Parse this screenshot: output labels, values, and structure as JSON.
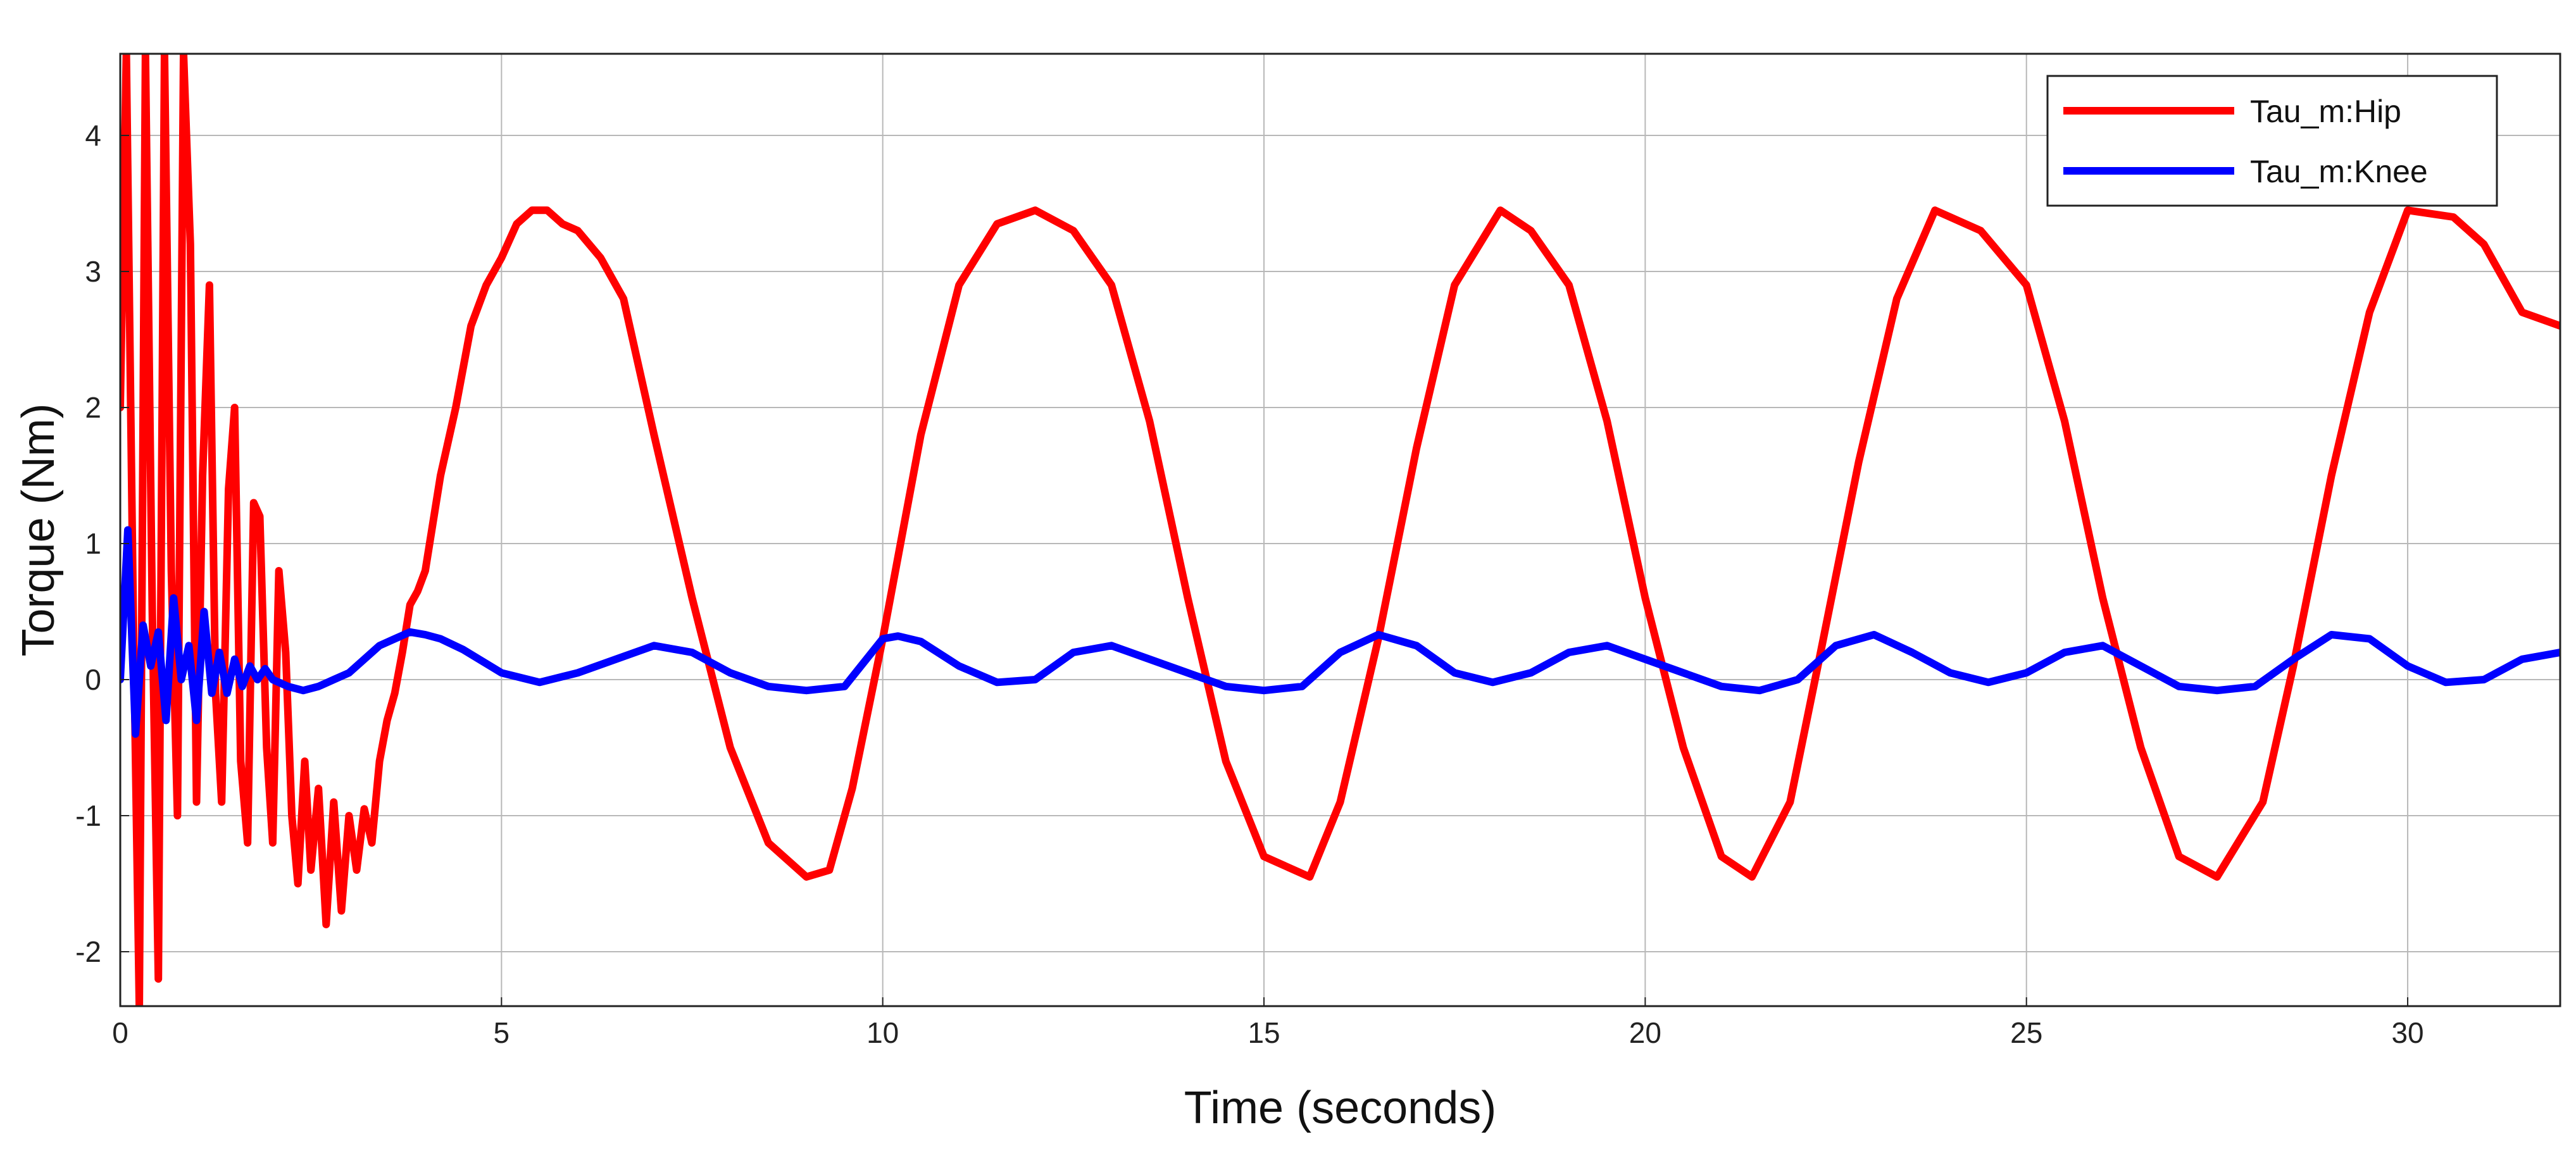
{
  "chart_data": {
    "type": "line",
    "xlabel": "Time (seconds)",
    "ylabel": "Torque (Nm)",
    "xlim": [
      0,
      32
    ],
    "ylim": [
      -2.4,
      4.6
    ],
    "x_ticks": [
      0,
      5,
      10,
      15,
      20,
      25,
      30
    ],
    "y_ticks": [
      -2,
      -1,
      0,
      1,
      2,
      3,
      4
    ],
    "x_tick_labels": [
      "0",
      "5",
      "10",
      "15",
      "20",
      "25",
      "30"
    ],
    "y_tick_labels": [
      "-2",
      "-1",
      "0",
      "1",
      "2",
      "3",
      "4"
    ],
    "grid": true,
    "legend_position": "top-right",
    "series": [
      {
        "name": "Tau_m:Hip",
        "color": "#ff0000",
        "x": [
          0,
          0.08,
          0.17,
          0.25,
          0.33,
          0.42,
          0.5,
          0.58,
          0.67,
          0.75,
          0.83,
          0.92,
          1.0,
          1.08,
          1.17,
          1.25,
          1.33,
          1.42,
          1.5,
          1.58,
          1.67,
          1.75,
          1.83,
          1.92,
          2.0,
          2.08,
          2.17,
          2.25,
          2.33,
          2.42,
          2.5,
          2.6,
          2.7,
          2.8,
          2.9,
          3.0,
          3.1,
          3.2,
          3.3,
          3.4,
          3.5,
          3.6,
          3.7,
          3.8,
          3.9,
          4.0,
          4.2,
          4.4,
          4.6,
          4.8,
          5.0,
          5.2,
          5.4,
          5.6,
          5.8,
          6.0,
          6.3,
          6.6,
          7.0,
          7.5,
          8.0,
          8.5,
          9.0,
          9.3,
          9.6,
          10.0,
          10.5,
          11.0,
          11.5,
          12.0,
          12.5,
          13.0,
          13.5,
          14.0,
          14.5,
          15.0,
          15.6,
          16.0,
          16.5,
          17.0,
          17.5,
          18.1,
          18.5,
          19.0,
          19.5,
          20.0,
          20.5,
          21.0,
          21.4,
          21.9,
          22.3,
          22.8,
          23.3,
          23.8,
          24.4,
          25.0,
          25.5,
          26.0,
          26.5,
          27.0,
          27.5,
          28.1,
          28.5,
          29.0,
          29.5,
          30.0,
          30.6,
          31.0,
          31.5,
          32.0
        ],
        "values": [
          2.0,
          4.6,
          0.5,
          -2.4,
          4.6,
          0.5,
          -2.2,
          4.6,
          0.8,
          -1.0,
          4.6,
          3.2,
          -0.9,
          1.5,
          2.9,
          -0.1,
          -0.9,
          1.4,
          2.0,
          -0.6,
          -1.2,
          1.3,
          1.2,
          -0.5,
          -1.2,
          0.8,
          0.2,
          -1.0,
          -1.5,
          -0.6,
          -1.4,
          -0.8,
          -1.8,
          -0.9,
          -1.7,
          -1.0,
          -1.4,
          -0.95,
          -1.2,
          -0.6,
          -0.3,
          -0.1,
          0.2,
          0.55,
          0.65,
          0.8,
          1.5,
          2.0,
          2.6,
          2.9,
          3.1,
          3.35,
          3.45,
          3.45,
          3.35,
          3.3,
          3.1,
          2.8,
          1.8,
          0.6,
          -0.5,
          -1.2,
          -1.45,
          -1.4,
          -0.8,
          0.3,
          1.8,
          2.9,
          3.35,
          3.45,
          3.3,
          2.9,
          1.9,
          0.6,
          -0.6,
          -1.3,
          -1.45,
          -0.9,
          0.3,
          1.7,
          2.9,
          3.45,
          3.3,
          2.9,
          1.9,
          0.6,
          -0.5,
          -1.3,
          -1.45,
          -0.9,
          0.2,
          1.6,
          2.8,
          3.45,
          3.3,
          2.9,
          1.9,
          0.6,
          -0.5,
          -1.3,
          -1.45,
          -0.9,
          0.1,
          1.5,
          2.7,
          3.45,
          3.4,
          3.2,
          2.7,
          2.6
        ]
      },
      {
        "name": "Tau_m:Knee",
        "color": "#0000ff",
        "x": [
          0,
          0.1,
          0.2,
          0.3,
          0.4,
          0.5,
          0.6,
          0.7,
          0.8,
          0.9,
          1.0,
          1.1,
          1.2,
          1.3,
          1.4,
          1.5,
          1.6,
          1.7,
          1.8,
          1.9,
          2.0,
          2.2,
          2.4,
          2.6,
          2.8,
          3.0,
          3.2,
          3.4,
          3.6,
          3.8,
          4.0,
          4.2,
          4.5,
          5.0,
          5.5,
          6.0,
          6.5,
          7.0,
          7.5,
          8.0,
          8.5,
          9.0,
          9.5,
          10.0,
          10.2,
          10.5,
          11.0,
          11.5,
          12.0,
          12.5,
          13.0,
          13.5,
          14.0,
          14.5,
          15.0,
          15.5,
          16.0,
          16.5,
          17.0,
          17.5,
          18.0,
          18.5,
          19.0,
          19.5,
          20.0,
          20.5,
          21.0,
          21.5,
          22.0,
          22.5,
          23.0,
          23.5,
          24.0,
          24.5,
          25.0,
          25.5,
          26.0,
          26.5,
          27.0,
          27.5,
          28.0,
          28.5,
          29.0,
          29.5,
          30.0,
          30.5,
          31.0,
          31.5,
          32.0
        ],
        "values": [
          0.0,
          1.1,
          -0.4,
          0.4,
          0.1,
          0.35,
          -0.3,
          0.6,
          0.0,
          0.25,
          -0.3,
          0.5,
          -0.1,
          0.2,
          -0.1,
          0.15,
          -0.05,
          0.1,
          0.0,
          0.08,
          0.0,
          -0.05,
          -0.08,
          -0.05,
          0.0,
          0.05,
          0.15,
          0.25,
          0.3,
          0.35,
          0.33,
          0.3,
          0.22,
          0.05,
          -0.02,
          0.05,
          0.15,
          0.25,
          0.2,
          0.05,
          -0.05,
          -0.08,
          -0.05,
          0.3,
          0.32,
          0.28,
          0.1,
          -0.02,
          0.0,
          0.2,
          0.25,
          0.15,
          0.05,
          -0.05,
          -0.08,
          -0.05,
          0.2,
          0.33,
          0.25,
          0.05,
          -0.02,
          0.05,
          0.2,
          0.25,
          0.15,
          0.05,
          -0.05,
          -0.08,
          0.0,
          0.25,
          0.33,
          0.2,
          0.05,
          -0.02,
          0.05,
          0.2,
          0.25,
          0.1,
          -0.05,
          -0.08,
          -0.05,
          0.15,
          0.33,
          0.3,
          0.1,
          -0.02,
          0.0,
          0.15,
          0.2
        ]
      }
    ]
  }
}
